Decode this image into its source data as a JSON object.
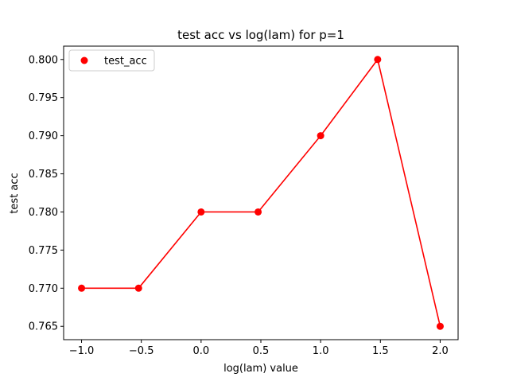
{
  "chart_data": {
    "type": "line",
    "title": "test acc vs log(lam) for p=1",
    "xlabel": "log(lam) value",
    "ylabel": "test acc",
    "x": [
      -1.0,
      -0.5229,
      0.0,
      0.4771,
      1.0,
      1.4771,
      2.0
    ],
    "series": [
      {
        "name": "test_acc",
        "values": [
          0.77,
          0.77,
          0.78,
          0.78,
          0.79,
          0.8,
          0.765
        ],
        "color": "#ff0000",
        "marker": "circle",
        "line": true
      }
    ],
    "xlim": [
      -1.15,
      2.15
    ],
    "ylim": [
      0.76325,
      0.80175
    ],
    "xticks": [
      -1.0,
      -0.5,
      0.0,
      0.5,
      1.0,
      1.5,
      2.0
    ],
    "xtick_labels": [
      "−1.0",
      "−0.5",
      "0.0",
      "0.5",
      "1.0",
      "1.5",
      "2.0"
    ],
    "yticks": [
      0.765,
      0.77,
      0.775,
      0.78,
      0.785,
      0.79,
      0.795,
      0.8
    ],
    "ytick_labels": [
      "0.765",
      "0.770",
      "0.775",
      "0.780",
      "0.785",
      "0.790",
      "0.795",
      "0.800"
    ],
    "grid": false,
    "legend_position": "top-left"
  }
}
